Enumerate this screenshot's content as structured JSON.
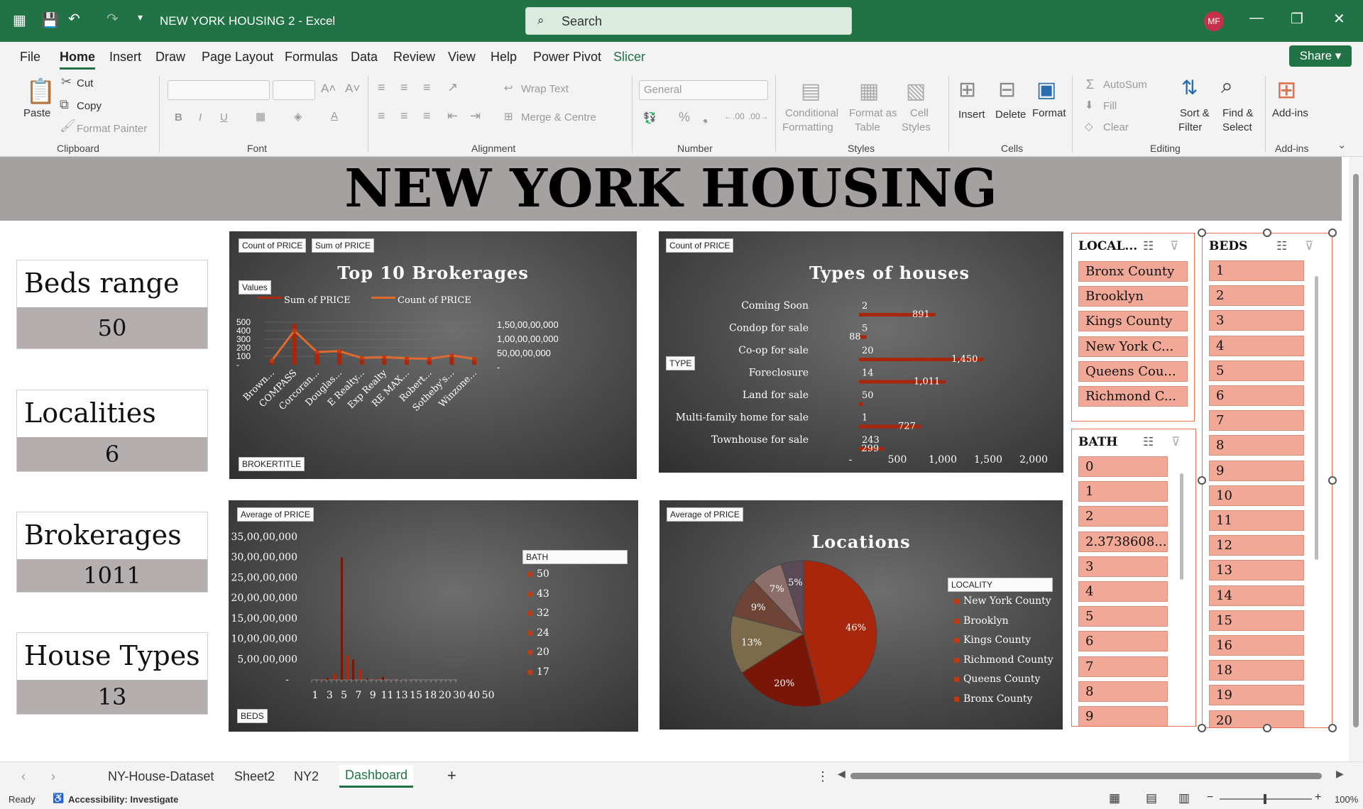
{
  "window": {
    "title": "NEW YORK HOUSING 2  -  Excel",
    "search_placeholder": "Search",
    "user_initials": "MF"
  },
  "menu": [
    "File",
    "Home",
    "Insert",
    "Draw",
    "Page Layout",
    "Formulas",
    "Data",
    "Review",
    "View",
    "Help",
    "Power Pivot",
    "Slicer"
  ],
  "share_label": "Share",
  "ribbon": {
    "clipboard": {
      "paste": "Paste",
      "cut": "Cut",
      "copy": "Copy",
      "format_painter": "Format Painter",
      "group": "Clipboard"
    },
    "font": {
      "group": "Font"
    },
    "alignment": {
      "wrap_text": "Wrap Text",
      "merge": "Merge & Centre",
      "group": "Alignment"
    },
    "number": {
      "format": "General",
      "group": "Number"
    },
    "styles": {
      "cond1": "Conditional",
      "cond2": "Formatting",
      "fmt_table1": "Format as",
      "fmt_table2": "Table",
      "cell_styles1": "Cell",
      "cell_styles2": "Styles",
      "group": "Styles"
    },
    "cells": {
      "insert": "Insert",
      "delete": "Delete",
      "format": "Format",
      "group": "Cells"
    },
    "editing": {
      "autosum": "AutoSum",
      "fill": "Fill",
      "clear": "Clear",
      "sort1": "Sort &",
      "sort2": "Filter",
      "find1": "Find &",
      "find2": "Select",
      "group": "Editing"
    },
    "addins": {
      "label": "Add-ins",
      "group": "Add-ins"
    }
  },
  "dashboard": {
    "title": "NEW YORK HOUSING",
    "kpis": [
      {
        "label": "Beds range",
        "value": "50"
      },
      {
        "label": "Localities",
        "value": "6"
      },
      {
        "label": "Brokerages",
        "value": "1011"
      },
      {
        "label": "House Types",
        "value": "13"
      }
    ]
  },
  "charts": {
    "brokerages": {
      "btn1": "Count of PRICE",
      "btn2": "Sum of PRICE",
      "values_btn": "Values",
      "filter_btn": "BROKERTITLE",
      "legend_sum": "Sum of PRICE",
      "legend_count": "Count of PRICE",
      "right_ticks": [
        "1,50,00,00,000",
        "1,00,00,00,000",
        "50,00,00,000",
        "-"
      ]
    },
    "types": {
      "btn1": "Count of PRICE",
      "filter_btn": "TYPE"
    },
    "beds": {
      "btn1": "Average of PRICE",
      "filter_btn": "BEDS",
      "legend_title": "BATH",
      "legend": [
        "50",
        "43",
        "32",
        "24",
        "20",
        "17"
      ]
    },
    "locations": {
      "btn1": "Average of PRICE",
      "legend_title": "LOCALITY",
      "legend": [
        "New York County",
        "Brooklyn",
        "Kings County",
        "Richmond County",
        "Queens County",
        "Bronx County"
      ]
    }
  },
  "chart_data": [
    {
      "type": "line",
      "title": "Top 10 Brokerages",
      "categories": [
        "Brown...",
        "COMPASS",
        "Corcoran...",
        "Douglas...",
        "E Realty...",
        "Exp Realty",
        "RE MAX...",
        "Robert...",
        "Sotheby's...",
        "Winzone..."
      ],
      "series": [
        {
          "name": "Count of PRICE",
          "values": [
            50,
            400,
            150,
            160,
            80,
            90,
            75,
            70,
            110,
            70
          ]
        },
        {
          "name": "Sum of PRICE",
          "values": [
            60,
            480,
            170,
            180,
            90,
            100,
            80,
            75,
            130,
            75
          ]
        }
      ],
      "yticks": [
        "500",
        "400",
        "300",
        "200",
        "100",
        "-"
      ],
      "ylim": [
        0,
        500
      ]
    },
    {
      "type": "bar",
      "title": "Types of houses",
      "categories": [
        "Coming Soon",
        "Condop for sale",
        "Co-op for sale",
        "Foreclosure",
        "Land for sale",
        "Multi-family home for sale",
        "Townhouse for sale"
      ],
      "labels_top": [
        "2",
        "5",
        "20",
        "14",
        "50",
        "1",
        "243"
      ],
      "labels_bar": [
        "891",
        "88",
        "1,450",
        "1,011",
        "",
        "727",
        "299"
      ],
      "values": [
        891,
        88,
        1450,
        1011,
        50,
        727,
        299
      ],
      "xticks": [
        "-",
        "500",
        "1,000",
        "1,500",
        "2,000"
      ],
      "xlim": [
        0,
        2000
      ]
    },
    {
      "type": "bar",
      "title": "",
      "categories": [
        "1",
        "3",
        "5",
        "7",
        "9",
        "11",
        "13",
        "15",
        "18",
        "20",
        "30",
        "40",
        "50"
      ],
      "yticks": [
        "35,00,00,000",
        "30,00,00,000",
        "25,00,00,000",
        "20,00,00,000",
        "15,00,00,000",
        "10,00,00,000",
        "5,00,00,000",
        "-"
      ],
      "values": [
        0.2,
        0.5,
        1.5,
        30,
        6,
        5,
        2.5,
        0.3,
        0.2,
        0.8,
        0.1,
        0.1,
        0.1
      ],
      "ylim": [
        0,
        35
      ]
    },
    {
      "type": "pie",
      "title": "Locations",
      "labels": [
        "46%",
        "20%",
        "13%",
        "9%",
        "7%",
        "5%"
      ],
      "values": [
        46,
        20,
        13,
        9,
        7,
        5
      ]
    }
  ],
  "slicers": {
    "locality": {
      "title": "LOCAL...",
      "items": [
        "Bronx County",
        "Brooklyn",
        "Kings County",
        "New York C...",
        "Queens Cou...",
        "Richmond C..."
      ]
    },
    "bath": {
      "title": "BATH",
      "items": [
        "0",
        "1",
        "2",
        "2.3738608...",
        "3",
        "4",
        "5",
        "6",
        "7",
        "8",
        "9"
      ]
    },
    "beds": {
      "title": "BEDS",
      "items": [
        "1",
        "2",
        "3",
        "4",
        "5",
        "6",
        "7",
        "8",
        "9",
        "10",
        "11",
        "12",
        "13",
        "14",
        "15",
        "16",
        "18",
        "19",
        "20"
      ]
    }
  },
  "sheet_tabs": [
    "NY-House-Dataset",
    "Sheet2",
    "NY2",
    "Dashboard"
  ],
  "status": {
    "ready": "Ready",
    "accessibility": "Accessibility: Investigate",
    "zoom": "100%"
  }
}
